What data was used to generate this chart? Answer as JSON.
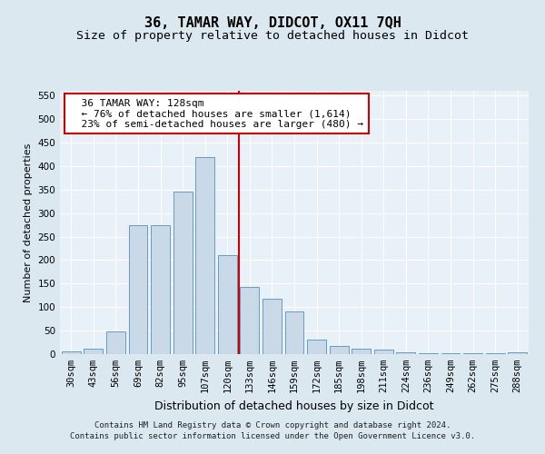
{
  "title": "36, TAMAR WAY, DIDCOT, OX11 7QH",
  "subtitle": "Size of property relative to detached houses in Didcot",
  "xlabel": "Distribution of detached houses by size in Didcot",
  "ylabel": "Number of detached properties",
  "categories": [
    "30sqm",
    "43sqm",
    "56sqm",
    "69sqm",
    "82sqm",
    "95sqm",
    "107sqm",
    "120sqm",
    "133sqm",
    "146sqm",
    "159sqm",
    "172sqm",
    "185sqm",
    "198sqm",
    "211sqm",
    "224sqm",
    "236sqm",
    "249sqm",
    "262sqm",
    "275sqm",
    "288sqm"
  ],
  "bar_heights": [
    5,
    12,
    49,
    275,
    275,
    345,
    420,
    210,
    143,
    117,
    90,
    30,
    18,
    12,
    10,
    3,
    2,
    1,
    1,
    1,
    3
  ],
  "bar_color": "#c9d9e8",
  "bar_edge_color": "#5590bf",
  "vline_index": 7.5,
  "vline_color": "#cc0000",
  "annotation_title": "36 TAMAR WAY: 128sqm",
  "annotation_line1": "← 76% of detached houses are smaller (1,614)",
  "annotation_line2": "23% of semi-detached houses are larger (480) →",
  "annotation_box_facecolor": "#ffffff",
  "annotation_box_edgecolor": "#cc0000",
  "footer1": "Contains HM Land Registry data © Crown copyright and database right 2024.",
  "footer2": "Contains public sector information licensed under the Open Government Licence v3.0.",
  "bg_color": "#dce8f0",
  "plot_bg_color": "#e8f0f8",
  "ylim": [
    0,
    560
  ],
  "yticks": [
    0,
    50,
    100,
    150,
    200,
    250,
    300,
    350,
    400,
    450,
    500,
    550
  ],
  "title_fontsize": 11,
  "subtitle_fontsize": 9.5,
  "xlabel_fontsize": 9,
  "ylabel_fontsize": 8,
  "tick_fontsize": 7.5,
  "annot_fontsize": 8,
  "footer_fontsize": 6.5
}
